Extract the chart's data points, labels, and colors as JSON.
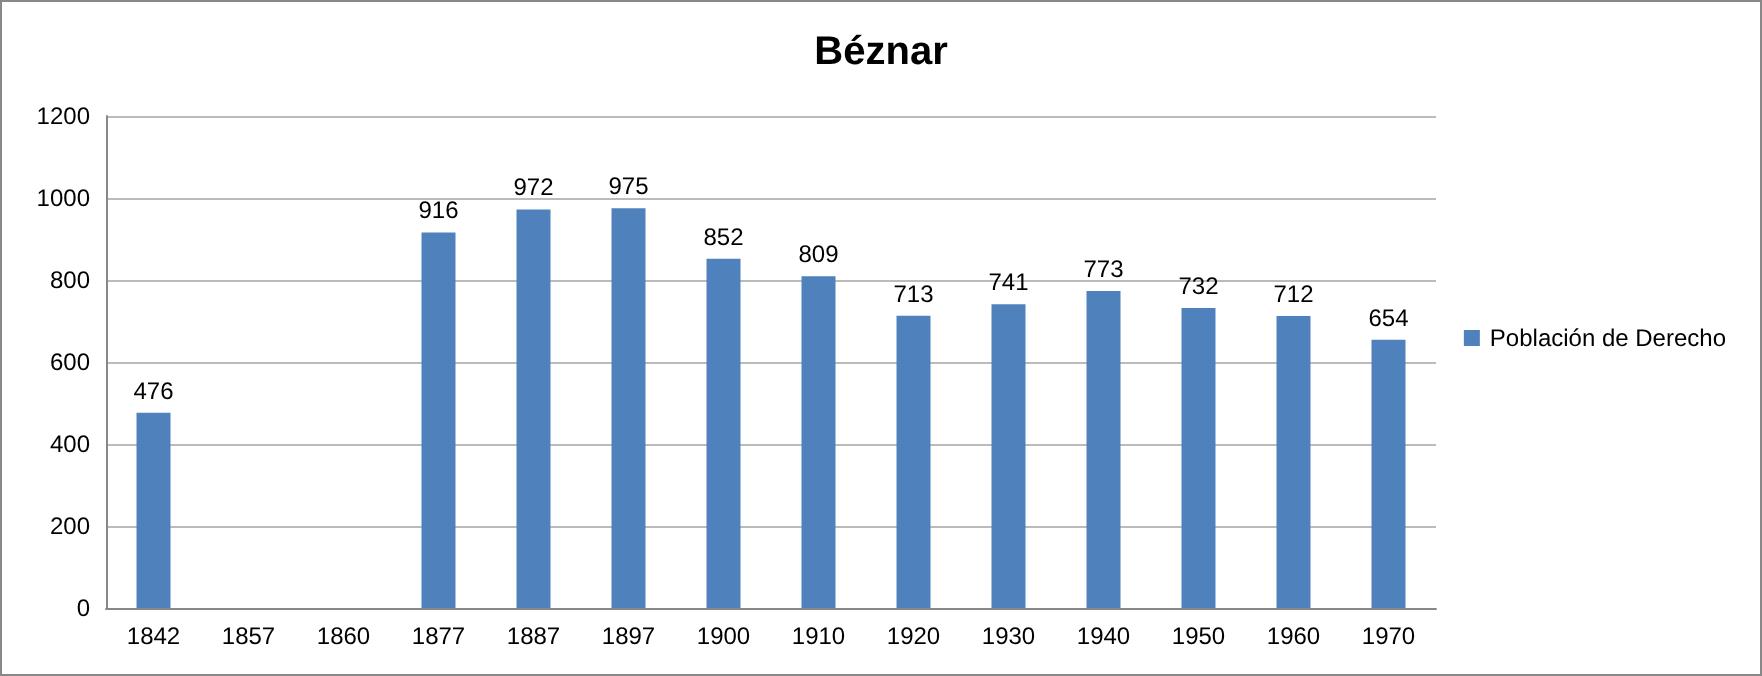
{
  "chart_data": {
    "type": "bar",
    "title": "Béznar",
    "categories": [
      "1842",
      "1857",
      "1860",
      "1877",
      "1887",
      "1897",
      "1900",
      "1910",
      "1920",
      "1930",
      "1940",
      "1950",
      "1960",
      "1970"
    ],
    "series": [
      {
        "name": "Población de Derecho",
        "color": "#4f81bd",
        "values": [
          476,
          null,
          null,
          916,
          972,
          975,
          852,
          809,
          713,
          741,
          773,
          732,
          712,
          654
        ]
      }
    ],
    "ylim": [
      0,
      1200
    ],
    "yticks": [
      0,
      200,
      400,
      600,
      800,
      1000,
      1200
    ],
    "grid": "y",
    "legend": "right",
    "data_labels": true
  }
}
